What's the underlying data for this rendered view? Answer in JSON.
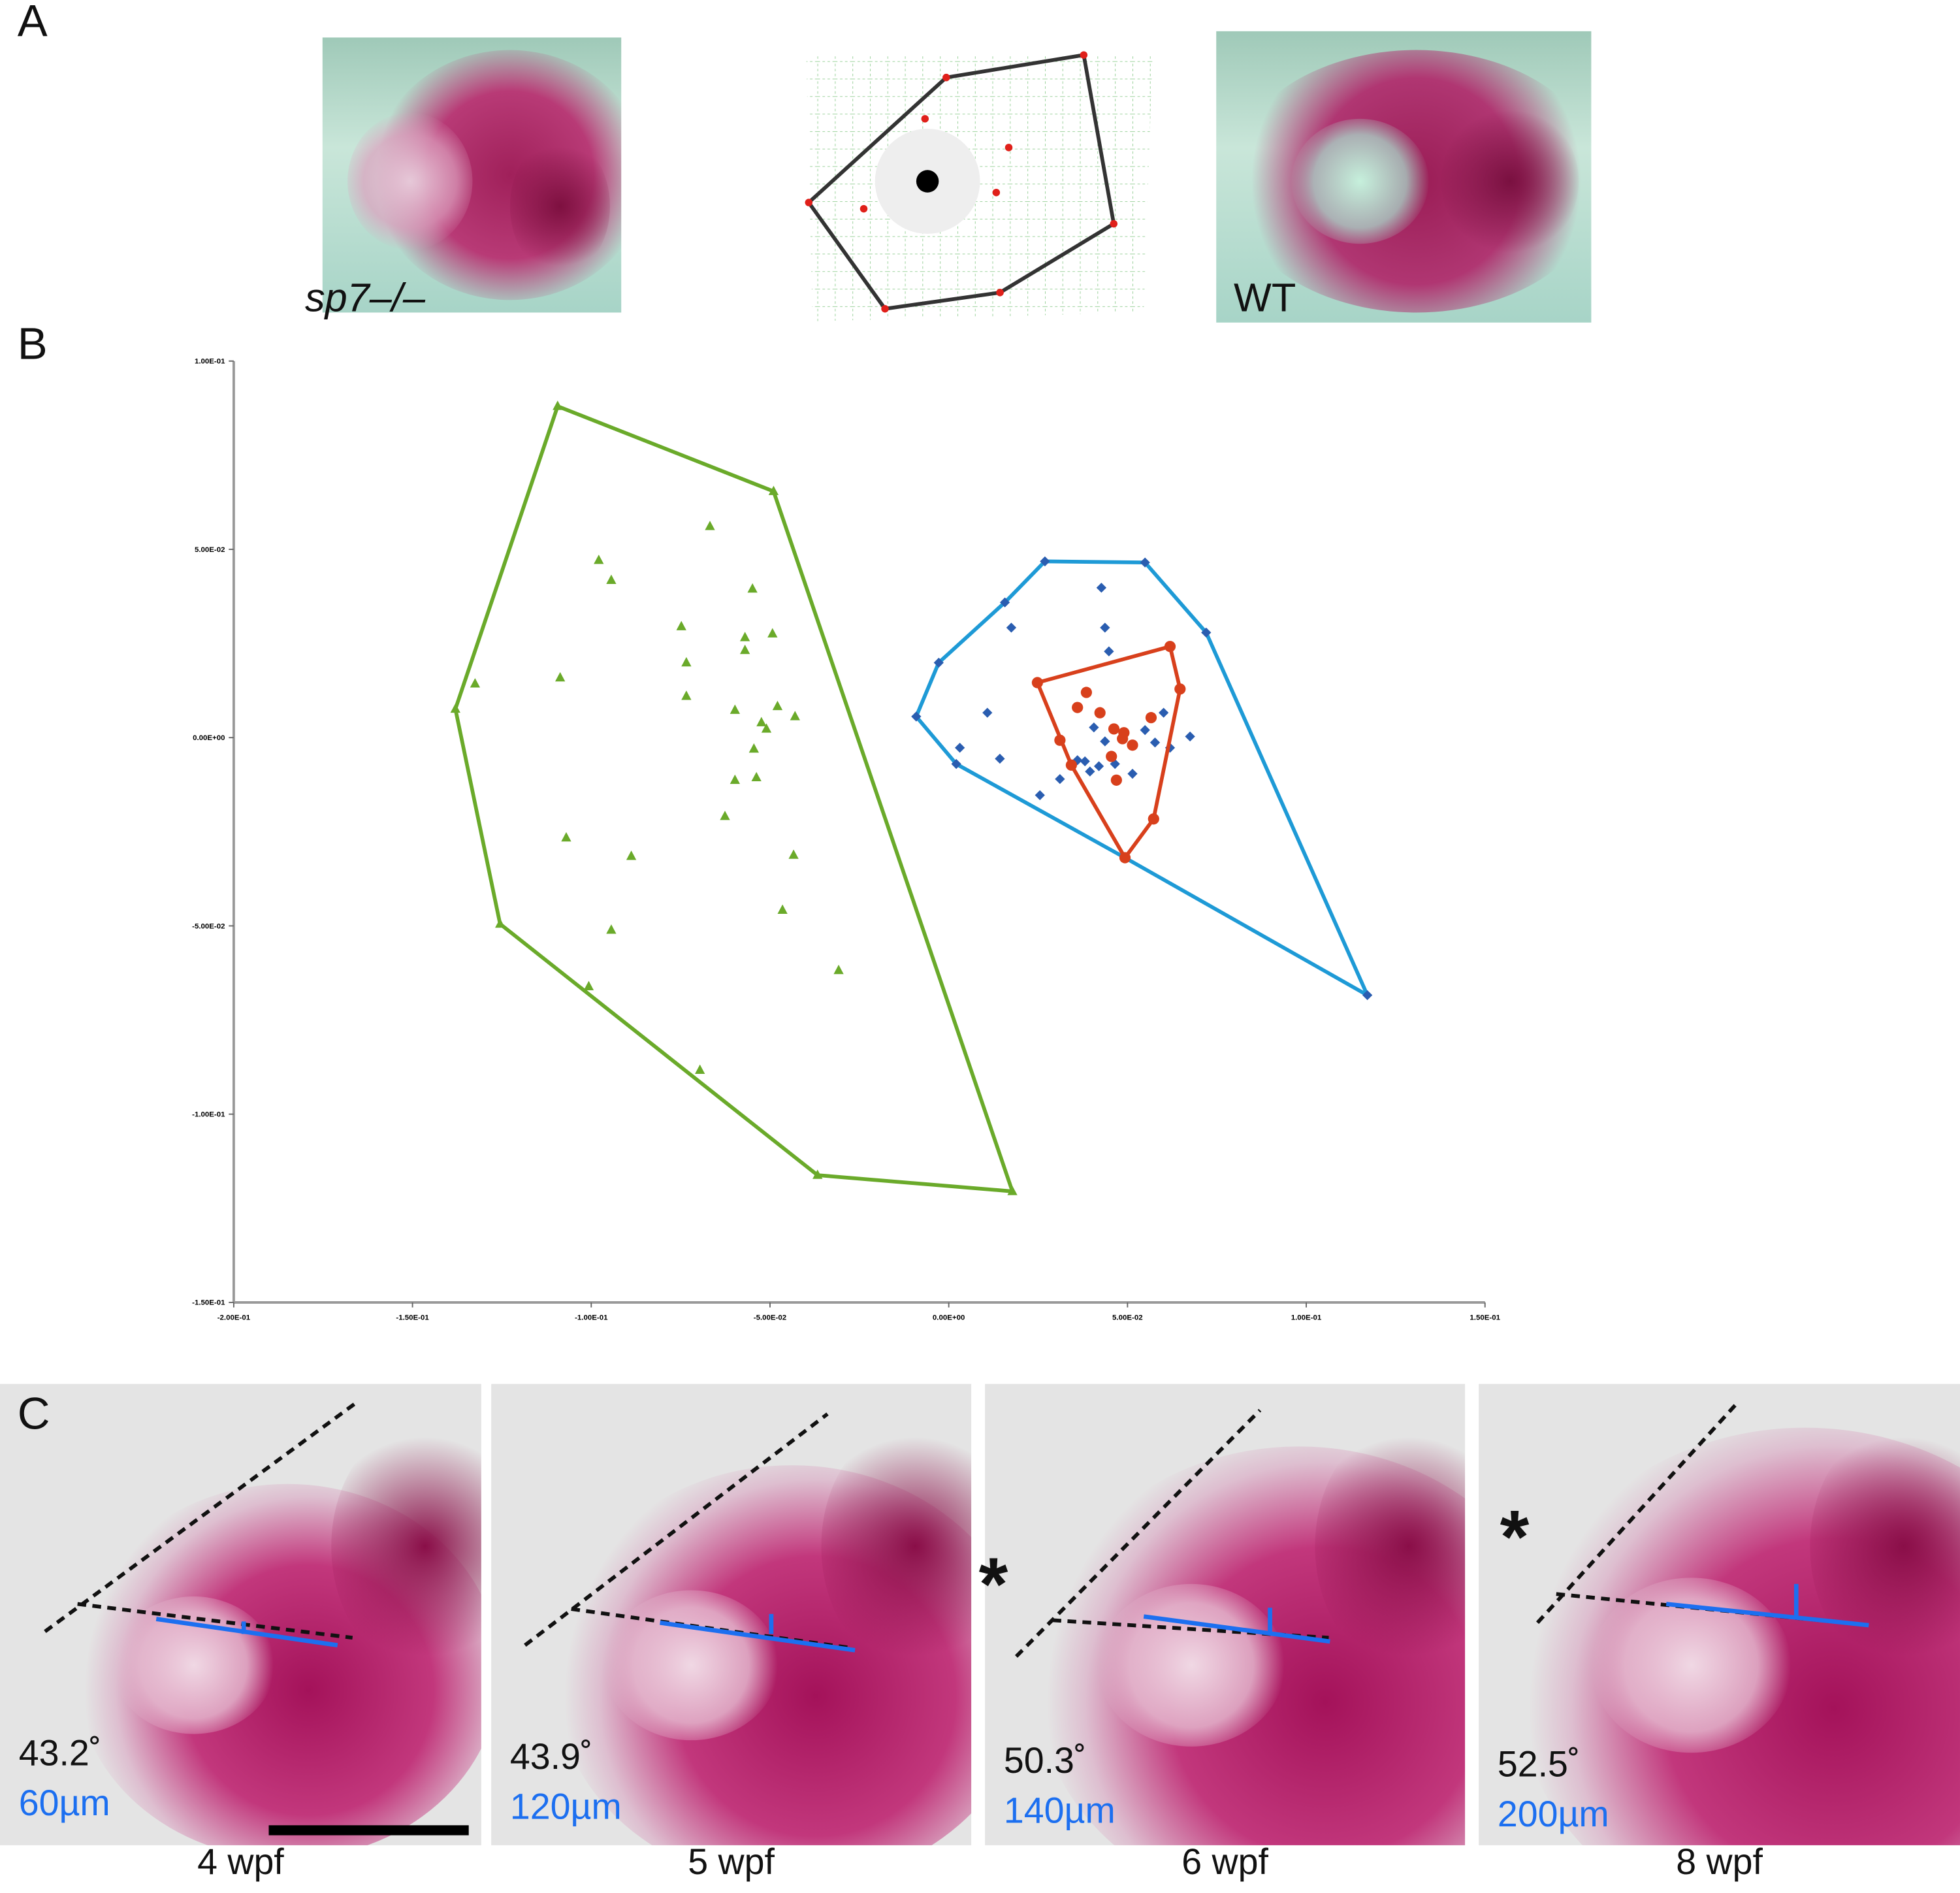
{
  "panel_labels": {
    "a": "A",
    "b": "B",
    "c": "C"
  },
  "panel_a": {
    "mutant_label": "sp7–/–",
    "wt_label": "WT"
  },
  "chart_data": {
    "type": "scatter",
    "title": "",
    "xlabel": "",
    "ylabel": "",
    "xlim": [
      -0.2,
      0.15
    ],
    "ylim": [
      -0.15,
      0.1
    ],
    "xticks": [
      -0.2,
      -0.15,
      -0.1,
      -0.05,
      0,
      0.05,
      0.1,
      0.15
    ],
    "xtick_labels": [
      "-2.00E-01",
      "-1.50E-01",
      "-1.00E-01",
      "-5.00E-02",
      "0.00E+00",
      "5.00E-02",
      "1.00E-01",
      "1.50E-01"
    ],
    "yticks": [
      0.1,
      0.05,
      0,
      -0.05,
      -0.1,
      -0.15
    ],
    "ytick_labels": [
      "1.00E-01",
      "5.00E-02",
      "0.00E+00",
      "-5.00E-02",
      "-1.00E-01",
      "-1.50E-01"
    ],
    "grid": false,
    "series": [
      {
        "name": "green",
        "color": "#6aaa2a",
        "marker": "triangle",
        "hull": [
          [
            -0.1094,
            0.088
          ],
          [
            -0.049,
            0.0654
          ],
          [
            0.0178,
            -0.1205
          ],
          [
            -0.0367,
            -0.1162
          ],
          [
            -0.1255,
            -0.0495
          ],
          [
            -0.138,
            0.0076
          ]
        ],
        "points": [
          [
            -0.1325,
            0.0143
          ],
          [
            -0.1087,
            0.0159
          ],
          [
            -0.0979,
            0.0471
          ],
          [
            -0.0944,
            0.0418
          ],
          [
            -0.0668,
            0.0561
          ],
          [
            -0.0549,
            0.0395
          ],
          [
            -0.0748,
            0.0295
          ],
          [
            -0.0734,
            0.0199
          ],
          [
            -0.0734,
            0.011
          ],
          [
            -0.057,
            0.0266
          ],
          [
            -0.057,
            0.0232
          ],
          [
            -0.0493,
            0.0276
          ],
          [
            -0.0598,
            0.0073
          ],
          [
            -0.0479,
            0.0083
          ],
          [
            -0.051,
            0.0023
          ],
          [
            -0.043,
            0.0056
          ],
          [
            -0.0524,
            0.004
          ],
          [
            -0.0545,
            -0.003
          ],
          [
            -0.0598,
            -0.0113
          ],
          [
            -0.0538,
            -0.0106
          ],
          [
            -0.0626,
            -0.0209
          ],
          [
            -0.107,
            -0.0266
          ],
          [
            -0.0888,
            -0.0315
          ],
          [
            -0.0944,
            -0.0511
          ],
          [
            -0.0434,
            -0.0312
          ],
          [
            -0.0465,
            -0.0458
          ],
          [
            -0.1007,
            -0.0661
          ],
          [
            -0.0308,
            -0.0618
          ],
          [
            -0.0696,
            -0.0883
          ]
        ]
      },
      {
        "name": "blue",
        "color": "#1e9ad6",
        "point_color": "#2a5db0",
        "marker": "diamond",
        "hull": [
          [
            -0.0091,
            0.0056
          ],
          [
            -0.0028,
            0.0199
          ],
          [
            0.0157,
            0.0359
          ],
          [
            0.0269,
            0.0468
          ],
          [
            0.0549,
            0.0465
          ],
          [
            0.072,
            0.0279
          ],
          [
            0.1171,
            -0.0684
          ],
          [
            0.0493,
            -0.0319
          ],
          [
            0.0021,
            -0.007
          ]
        ],
        "points": [
          [
            0.0108,
            0.0066
          ],
          [
            0.0031,
            -0.0027
          ],
          [
            0.0143,
            -0.0056
          ],
          [
            0.0175,
            0.0292
          ],
          [
            0.0427,
            0.0398
          ],
          [
            0.0437,
            0.0292
          ],
          [
            0.0448,
            0.0229
          ],
          [
            0.0255,
            -0.0153
          ],
          [
            0.0311,
            -0.011
          ],
          [
            0.0406,
            0.0027
          ],
          [
            0.0437,
            -0.001
          ],
          [
            0.042,
            -0.0076
          ],
          [
            0.0395,
            -0.009
          ],
          [
            0.0381,
            -0.0063
          ],
          [
            0.0549,
            0.002
          ],
          [
            0.0577,
            -0.0013
          ],
          [
            0.0601,
            0.0066
          ],
          [
            0.0619,
            -0.0027
          ],
          [
            0.0675,
            0.0003
          ],
          [
            0.0514,
            -0.0096
          ],
          [
            0.0465,
            -0.007
          ],
          [
            0.036,
            -0.006
          ]
        ]
      },
      {
        "name": "red",
        "color": "#d8401c",
        "marker": "circle",
        "hull": [
          [
            0.0248,
            0.0146
          ],
          [
            0.0619,
            0.0242
          ],
          [
            0.0647,
            0.0129
          ],
          [
            0.0573,
            -0.0216
          ],
          [
            0.0493,
            -0.0319
          ],
          [
            0.0343,
            -0.0073
          ]
        ],
        "points": [
          [
            0.0385,
            0.012
          ],
          [
            0.036,
            0.008
          ],
          [
            0.0423,
            0.0066
          ],
          [
            0.0462,
            0.0023
          ],
          [
            0.049,
            0.0013
          ],
          [
            0.0514,
            -0.002
          ],
          [
            0.0455,
            -0.005
          ],
          [
            0.0486,
            -0.0003
          ],
          [
            0.0469,
            -0.0113
          ],
          [
            0.0566,
            0.0053
          ],
          [
            0.0311,
            -0.0007
          ]
        ]
      }
    ]
  },
  "panel_c": {
    "panels": [
      {
        "angle": "43.2˚",
        "length": "60µm",
        "stage": "4 wpf"
      },
      {
        "angle": "43.9˚",
        "length": "120µm",
        "stage": "5 wpf"
      },
      {
        "angle": "50.3˚",
        "length": "140µm",
        "stage": "6 wpf"
      },
      {
        "angle": "52.5˚",
        "length": "200µm",
        "stage": "8 wpf"
      }
    ],
    "asterisk": "*",
    "blue_color": "#1c6ff0"
  }
}
